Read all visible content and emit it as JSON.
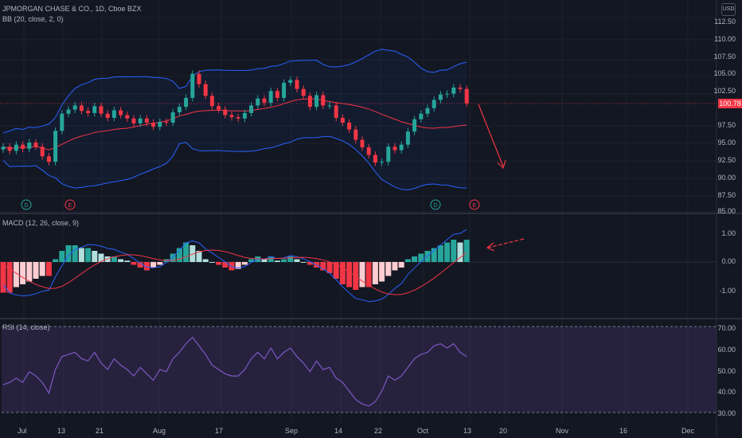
{
  "header": {
    "title": "JPMORGAN CHASE & CO., 1D, Cboe BZX",
    "bb_label": "BB (20, close, 2, 0)",
    "currency": "USD"
  },
  "macd_label": "MACD (12, 26, close, 9)",
  "rsi_label": "RSI (14, close)",
  "last_price": "100.78",
  "price_axis": [
    "112.50",
    "110.00",
    "107.50",
    "105.00",
    "102.50",
    "97.50",
    "95.00",
    "92.50",
    "90.00",
    "87.50",
    "85.00"
  ],
  "macd_axis": [
    "1.00",
    "0.00",
    "-1.00"
  ],
  "rsi_axis": [
    "70.00",
    "60.00",
    "50.00",
    "40.00",
    "30.00"
  ],
  "time_axis": [
    "Jul",
    "13",
    "21",
    "Aug",
    "17",
    "Sep",
    "14",
    "22",
    "Oct",
    "13",
    "20",
    "Nov",
    "16",
    "Dec"
  ],
  "event_markers": [
    "D",
    "E",
    "D",
    "E"
  ],
  "colors": {
    "up": "#26a69a",
    "down": "#f23645",
    "bb_band": "#2962ff",
    "basis": "#f23645",
    "rsi_fill": "#7e57c2",
    "macd_line": "#2962ff",
    "signal_line": "#f23645"
  },
  "chart_data": {
    "type": "candlestick",
    "closes": [
      94.5,
      93.9,
      94.8,
      94.2,
      95.1,
      94.5,
      93.1,
      92.3,
      96.8,
      99.3,
      99.9,
      100.5,
      99.7,
      99.4,
      100.4,
      99.3,
      98.7,
      99.8,
      99.1,
      98.6,
      97.9,
      98.6,
      98.0,
      97.4,
      98.1,
      98.0,
      99.5,
      100.3,
      101.6,
      105.1,
      103.6,
      101.9,
      100.4,
      99.9,
      99.1,
      98.8,
      98.6,
      99.4,
      100.5,
      101.5,
      100.9,
      102.6,
      101.6,
      103.8,
      104.2,
      102.9,
      101.9,
      100.3,
      102.0,
      100.5,
      100.5,
      98.7,
      98.0,
      97.0,
      95.5,
      94.4,
      93.3,
      92.2,
      92.3,
      94.5,
      94.0,
      94.8,
      96.7,
      98.5,
      99.3,
      100.1,
      101.3,
      102.1,
      102.2,
      103.1,
      102.9,
      100.8
    ],
    "macd_hist": [
      -1.1,
      -1.1,
      -0.9,
      -0.8,
      -0.7,
      -0.6,
      -0.5,
      -0.5,
      0.1,
      0.4,
      0.6,
      0.6,
      0.5,
      0.5,
      0.4,
      0.3,
      0.2,
      0.2,
      0.1,
      0.05,
      -0.1,
      -0.2,
      -0.3,
      -0.2,
      -0.1,
      0.1,
      0.3,
      0.5,
      0.7,
      0.6,
      0.4,
      0.1,
      0.0,
      -0.1,
      -0.2,
      -0.3,
      -0.25,
      -0.1,
      0.1,
      0.2,
      0.1,
      0.2,
      0.05,
      0.1,
      0.2,
      0.1,
      0.0,
      -0.1,
      -0.2,
      -0.3,
      -0.4,
      -0.6,
      -0.8,
      -0.9,
      -1.0,
      -0.9,
      -0.9,
      -0.8,
      -0.7,
      -0.5,
      -0.3,
      -0.2,
      0.1,
      0.2,
      0.3,
      0.4,
      0.5,
      0.6,
      0.7,
      0.8,
      0.7,
      0.8
    ],
    "rsi": [
      43,
      44,
      46,
      44,
      49,
      47,
      44,
      39,
      50,
      56,
      57,
      58,
      55,
      54,
      58,
      53,
      50,
      55,
      52,
      50,
      47,
      51,
      48,
      45,
      50,
      49,
      55,
      58,
      62,
      65,
      61,
      57,
      52,
      50,
      48,
      47,
      47,
      50,
      55,
      58,
      55,
      60,
      55,
      58,
      60,
      56,
      53,
      49,
      54,
      50,
      51,
      46,
      44,
      40,
      36,
      34,
      33,
      35,
      40,
      47,
      45,
      47,
      51,
      55,
      57,
      58,
      61,
      62,
      60,
      62,
      58,
      56
    ],
    "ylim": [
      85,
      115
    ]
  }
}
